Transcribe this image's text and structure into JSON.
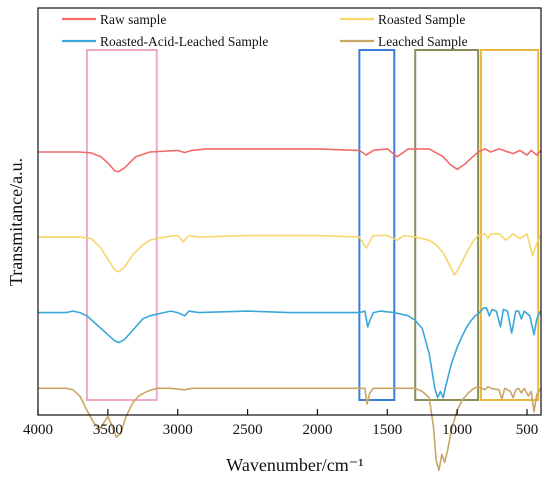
{
  "chart_data": {
    "type": "line",
    "xlabel": "Wavenumber/cm⁻¹",
    "ylabel": "Transmitance/a.u.",
    "xlim": [
      4000,
      400
    ],
    "x_reversed": true,
    "xticks": [
      4000,
      3500,
      3000,
      2500,
      2000,
      1500,
      1000,
      500
    ],
    "yticks_shown": false,
    "legend_position": "top",
    "series": [
      {
        "name": "Raw sample",
        "color": "#f26b6b",
        "offset": 8.0,
        "points": [
          [
            4000,
            0
          ],
          [
            3700,
            0
          ],
          [
            3620,
            -0.03
          ],
          [
            3550,
            -0.15
          ],
          [
            3500,
            -0.35
          ],
          [
            3450,
            -0.6
          ],
          [
            3420,
            -0.62
          ],
          [
            3380,
            -0.5
          ],
          [
            3300,
            -0.15
          ],
          [
            3200,
            0
          ],
          [
            3000,
            0.05
          ],
          [
            2950,
            -0.02
          ],
          [
            2900,
            0.05
          ],
          [
            2800,
            0.1
          ],
          [
            2500,
            0.1
          ],
          [
            2000,
            0.1
          ],
          [
            1700,
            0.05
          ],
          [
            1650,
            -0.1
          ],
          [
            1600,
            0.05
          ],
          [
            1500,
            0.1
          ],
          [
            1430,
            -0.15
          ],
          [
            1350,
            0.1
          ],
          [
            1200,
            0.1
          ],
          [
            1100,
            -0.15
          ],
          [
            1050,
            -0.4
          ],
          [
            1000,
            -0.55
          ],
          [
            950,
            -0.4
          ],
          [
            900,
            -0.2
          ],
          [
            850,
            0
          ],
          [
            800,
            0.1
          ],
          [
            760,
            0
          ],
          [
            700,
            0.1
          ],
          [
            600,
            -0.05
          ],
          [
            550,
            0.05
          ],
          [
            500,
            -0.1
          ],
          [
            470,
            0.05
          ],
          [
            430,
            -0.1
          ],
          [
            400,
            0.05
          ]
        ]
      },
      {
        "name": "Roasted Sample",
        "color": "#f7d66b",
        "offset": 5.3,
        "points": [
          [
            4000,
            0
          ],
          [
            3700,
            0
          ],
          [
            3620,
            -0.05
          ],
          [
            3550,
            -0.35
          ],
          [
            3500,
            -0.7
          ],
          [
            3450,
            -1.05
          ],
          [
            3420,
            -1.1
          ],
          [
            3380,
            -0.95
          ],
          [
            3320,
            -0.55
          ],
          [
            3250,
            -0.25
          ],
          [
            3200,
            -0.1
          ],
          [
            3100,
            0
          ],
          [
            3000,
            0.05
          ],
          [
            2960,
            -0.15
          ],
          [
            2920,
            0.05
          ],
          [
            2850,
            0
          ],
          [
            2500,
            0.05
          ],
          [
            2000,
            0.05
          ],
          [
            1700,
            0
          ],
          [
            1650,
            -0.35
          ],
          [
            1620,
            -0.1
          ],
          [
            1600,
            0.05
          ],
          [
            1550,
            0.05
          ],
          [
            1500,
            0.05
          ],
          [
            1430,
            -0.1
          ],
          [
            1380,
            0.05
          ],
          [
            1300,
            0
          ],
          [
            1200,
            -0.1
          ],
          [
            1150,
            -0.25
          ],
          [
            1100,
            -0.5
          ],
          [
            1060,
            -0.85
          ],
          [
            1020,
            -1.2
          ],
          [
            990,
            -1.0
          ],
          [
            950,
            -0.65
          ],
          [
            920,
            -0.4
          ],
          [
            880,
            -0.1
          ],
          [
            850,
            0.05
          ],
          [
            800,
            0.1
          ],
          [
            780,
            -0.05
          ],
          [
            760,
            0.1
          ],
          [
            700,
            0.1
          ],
          [
            650,
            -0.1
          ],
          [
            600,
            0.1
          ],
          [
            550,
            -0.05
          ],
          [
            500,
            0.1
          ],
          [
            460,
            -0.6
          ],
          [
            430,
            -0.2
          ],
          [
            400,
            0.05
          ]
        ]
      },
      {
        "name": "Roasted-Acid-Leached Sample",
        "color": "#3aa7d9",
        "offset": 2.9,
        "points": [
          [
            4000,
            0
          ],
          [
            3800,
            0
          ],
          [
            3750,
            0.05
          ],
          [
            3700,
            0
          ],
          [
            3650,
            -0.1
          ],
          [
            3600,
            -0.3
          ],
          [
            3550,
            -0.5
          ],
          [
            3500,
            -0.7
          ],
          [
            3450,
            -0.9
          ],
          [
            3420,
            -0.95
          ],
          [
            3380,
            -0.85
          ],
          [
            3320,
            -0.55
          ],
          [
            3280,
            -0.35
          ],
          [
            3250,
            -0.2
          ],
          [
            3200,
            -0.1
          ],
          [
            3100,
            0
          ],
          [
            3050,
            0.05
          ],
          [
            3000,
            0
          ],
          [
            2950,
            -0.1
          ],
          [
            2920,
            0.05
          ],
          [
            2850,
            0
          ],
          [
            2500,
            0.05
          ],
          [
            2200,
            0
          ],
          [
            2000,
            0
          ],
          [
            1800,
            0
          ],
          [
            1700,
            0
          ],
          [
            1660,
            0.05
          ],
          [
            1640,
            -0.45
          ],
          [
            1620,
            -0.2
          ],
          [
            1600,
            0
          ],
          [
            1550,
            0.05
          ],
          [
            1450,
            0
          ],
          [
            1350,
            -0.1
          ],
          [
            1300,
            -0.25
          ],
          [
            1250,
            -0.5
          ],
          [
            1200,
            -1.3
          ],
          [
            1160,
            -2.4
          ],
          [
            1140,
            -2.7
          ],
          [
            1120,
            -2.5
          ],
          [
            1100,
            -2.7
          ],
          [
            1080,
            -2.3
          ],
          [
            1040,
            -1.6
          ],
          [
            1000,
            -1.1
          ],
          [
            960,
            -0.7
          ],
          [
            930,
            -0.45
          ],
          [
            900,
            -0.25
          ],
          [
            870,
            -0.1
          ],
          [
            840,
            0
          ],
          [
            810,
            0.15
          ],
          [
            790,
            0.15
          ],
          [
            770,
            -0.1
          ],
          [
            750,
            0.1
          ],
          [
            720,
            0.05
          ],
          [
            690,
            -0.45
          ],
          [
            670,
            0.1
          ],
          [
            640,
            0.05
          ],
          [
            610,
            -0.65
          ],
          [
            580,
            0.05
          ],
          [
            560,
            0.05
          ],
          [
            540,
            -0.2
          ],
          [
            520,
            0.05
          ],
          [
            480,
            -0.1
          ],
          [
            450,
            -0.7
          ],
          [
            430,
            -0.2
          ],
          [
            410,
            0
          ],
          [
            400,
            0.05
          ]
        ]
      },
      {
        "name": "Leached Sample",
        "color": "#c9a665",
        "offset": 0.5,
        "points": [
          [
            4000,
            0
          ],
          [
            3800,
            0
          ],
          [
            3750,
            -0.05
          ],
          [
            3700,
            -0.25
          ],
          [
            3650,
            -0.7
          ],
          [
            3600,
            -1.1
          ],
          [
            3560,
            -1.3
          ],
          [
            3530,
            -1.1
          ],
          [
            3500,
            -0.9
          ],
          [
            3470,
            -1.2
          ],
          [
            3440,
            -1.55
          ],
          [
            3410,
            -1.45
          ],
          [
            3370,
            -0.9
          ],
          [
            3320,
            -0.45
          ],
          [
            3280,
            -0.25
          ],
          [
            3220,
            -0.1
          ],
          [
            3150,
            0
          ],
          [
            3050,
            0
          ],
          [
            2950,
            -0.05
          ],
          [
            2900,
            0
          ],
          [
            2500,
            0
          ],
          [
            2000,
            0
          ],
          [
            1800,
            0
          ],
          [
            1700,
            0
          ],
          [
            1660,
            0
          ],
          [
            1645,
            -0.5
          ],
          [
            1625,
            -0.15
          ],
          [
            1600,
            0
          ],
          [
            1550,
            0
          ],
          [
            1450,
            0
          ],
          [
            1300,
            0
          ],
          [
            1250,
            -0.1
          ],
          [
            1200,
            -0.3
          ],
          [
            1170,
            -1.2
          ],
          [
            1150,
            -2.3
          ],
          [
            1130,
            -2.6
          ],
          [
            1110,
            -2.1
          ],
          [
            1090,
            -2.35
          ],
          [
            1070,
            -2.0
          ],
          [
            1040,
            -1.3
          ],
          [
            1000,
            -0.7
          ],
          [
            960,
            -0.35
          ],
          [
            920,
            -0.15
          ],
          [
            880,
            0
          ],
          [
            850,
            0.05
          ],
          [
            800,
            -0.05
          ],
          [
            780,
            0.05
          ],
          [
            760,
            0
          ],
          [
            700,
            -0.05
          ],
          [
            680,
            -0.35
          ],
          [
            660,
            0
          ],
          [
            620,
            -0.1
          ],
          [
            600,
            -0.3
          ],
          [
            580,
            -0.05
          ],
          [
            560,
            0
          ],
          [
            540,
            -0.15
          ],
          [
            520,
            0
          ],
          [
            490,
            -0.25
          ],
          [
            470,
            -0.1
          ],
          [
            450,
            -0.75
          ],
          [
            430,
            -0.2
          ],
          [
            400,
            0
          ]
        ]
      }
    ],
    "highlight_boxes": [
      {
        "x_from": 3650,
        "x_to": 3150,
        "color": "#f0a7c8"
      },
      {
        "x_from": 1700,
        "x_to": 1450,
        "color": "#3b7dd8"
      },
      {
        "x_from": 1300,
        "x_to": 850,
        "color": "#8c8c58"
      },
      {
        "x_from": 830,
        "x_to": 420,
        "color": "#e8b73e"
      }
    ]
  }
}
